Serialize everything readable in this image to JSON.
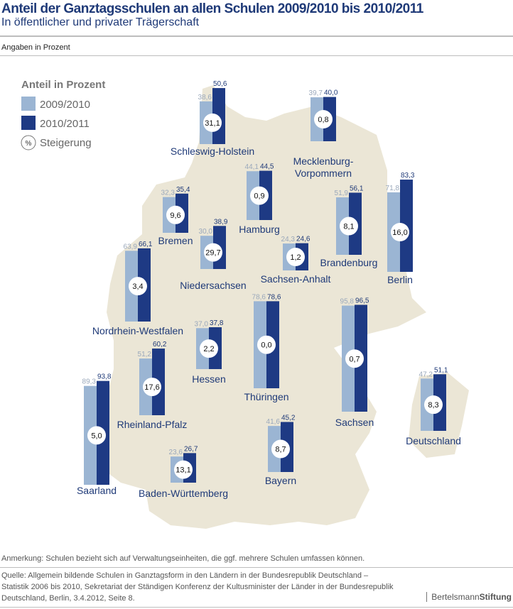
{
  "header": {
    "title": "Anteil der Ganztagsschulen an allen Schulen 2009/2010 bis 2010/2011",
    "subtitle": "In öffentlicher und privater Trägerschaft",
    "unit": "Angaben in Prozent"
  },
  "footer": {
    "note": "Anmerkung: Schulen bezieht sich auf Verwaltungseinheiten, die ggf. mehrere Schulen umfassen können.",
    "source_lines": [
      "Quelle: Allgemein bildende Schulen in Ganztagsform in den Ländern in der Bundesrepublik Deutschland –",
      "Statistik 2006 bis 2010, Sekretariat der Ständigen Konferenz der Kultusminister der Länder in der Bundesrepublik",
      "Deutschland, Berlin, 3.4.2012, Seite 8."
    ],
    "logo": {
      "part1": "Bertelsmann",
      "part2": "Stiftung"
    }
  },
  "colors": {
    "light": "#9bb5d3",
    "dark": "#1e3a84",
    "map": "#ebe6d6",
    "text": "#1f3a78"
  },
  "chart_data": {
    "type": "bar",
    "legend": {
      "title": "Anteil in Prozent",
      "series": [
        "2009/2010",
        "2010/2011"
      ],
      "circle_symbol": "%",
      "circle_label": "Steigerung"
    },
    "series": [
      {
        "name": "2009/2010"
      },
      {
        "name": "2010/2011"
      }
    ],
    "regions": [
      {
        "name": [
          "Schleswig-Holstein"
        ],
        "v1": "38,6",
        "v2": "50,6",
        "change": "31,1"
      },
      {
        "name": [
          "Mecklenburg-",
          "Vorpommern"
        ],
        "v1": "39,7",
        "v2": "40,0",
        "change": "0,8"
      },
      {
        "name": [
          "Hamburg"
        ],
        "v1": "44,1",
        "v2": "44,5",
        "change": "0,9"
      },
      {
        "name": [
          "Bremen"
        ],
        "v1": "32,3",
        "v2": "35,4",
        "change": "9,6"
      },
      {
        "name": [
          "Niedersachsen"
        ],
        "v1": "30,0",
        "v2": "38,9",
        "change": "29,7"
      },
      {
        "name": [
          "Sachsen-Anhalt"
        ],
        "v1": "24,3",
        "v2": "24,6",
        "change": "1,2"
      },
      {
        "name": [
          "Brandenburg"
        ],
        "v1": "51,9",
        "v2": "56,1",
        "change": "8,1"
      },
      {
        "name": [
          "Berlin"
        ],
        "v1": "71,8",
        "v2": "83,3",
        "change": "16,0"
      },
      {
        "name": [
          "Nordrhein-Westfalen"
        ],
        "v1": "63,9",
        "v2": "66,1",
        "change": "3,4"
      },
      {
        "name": [
          "Thüringen"
        ],
        "v1": "78,6",
        "v2": "78,6",
        "change": "0,0"
      },
      {
        "name": [
          "Sachsen"
        ],
        "v1": "95,8",
        "v2": "96,5",
        "change": "0,7"
      },
      {
        "name": [
          "Hessen"
        ],
        "v1": "37,0",
        "v2": "37,8",
        "change": "2,2"
      },
      {
        "name": [
          "Rheinland-Pfalz"
        ],
        "v1": "51,2",
        "v2": "60,2",
        "change": "17,6"
      },
      {
        "name": [
          "Saarland"
        ],
        "v1": "89,3",
        "v2": "93,8",
        "change": "5,0"
      },
      {
        "name": [
          "Baden-Württemberg"
        ],
        "v1": "23,6",
        "v2": "26,7",
        "change": "13,1"
      },
      {
        "name": [
          "Bayern"
        ],
        "v1": "41,6",
        "v2": "45,2",
        "change": "8,7"
      },
      {
        "name": [
          "Deutschland"
        ],
        "v1": "47,2",
        "v2": "51,1",
        "change": "8,3"
      }
    ]
  }
}
